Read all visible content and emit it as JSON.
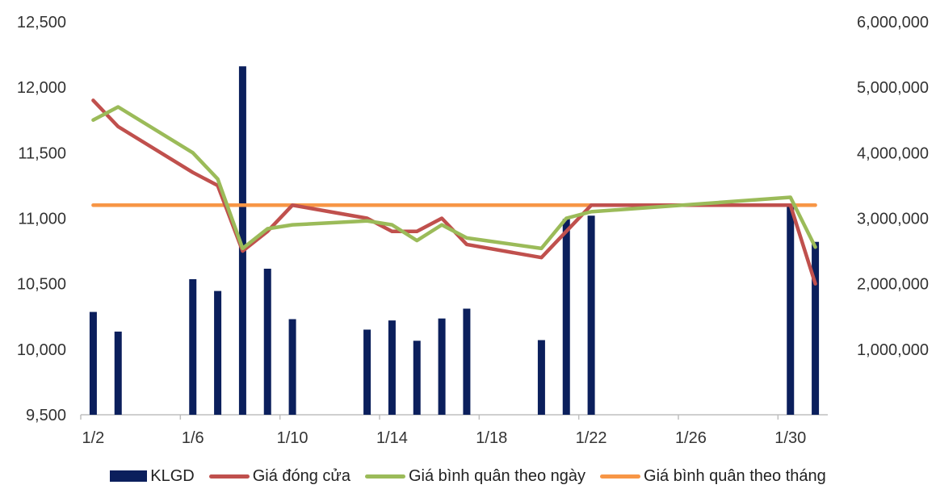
{
  "chart_data": {
    "type": "bar",
    "categories": [
      "1/2",
      "1/3",
      "1/4",
      "1/5",
      "1/6",
      "1/7",
      "1/8",
      "1/9",
      "1/10",
      "1/11",
      "1/12",
      "1/13",
      "1/14",
      "1/15",
      "1/16",
      "1/17",
      "1/18",
      "1/19",
      "1/20",
      "1/21",
      "1/22",
      "1/23",
      "1/24",
      "1/25",
      "1/26",
      "1/27",
      "1/28",
      "1/29",
      "1/30",
      "1/31"
    ],
    "x_tick_labels": [
      "1/2",
      "1/6",
      "1/10",
      "1/14",
      "1/18",
      "1/22",
      "1/26",
      "1/30"
    ],
    "left_axis": {
      "range": [
        9500,
        12500
      ],
      "ticks": [
        "9,500",
        "10,000",
        "10,500",
        "11,000",
        "11,500",
        "12,000",
        "12,500"
      ]
    },
    "right_axis": {
      "range": [
        0,
        6000000
      ],
      "ticks": [
        "",
        "1,000,000",
        "2,000,000",
        "3,000,000",
        "4,000,000",
        "5,000,000",
        "6,000,000"
      ]
    },
    "series": [
      {
        "name": "KLGD",
        "kind": "bar",
        "axis": "right",
        "color": "#0b1f5c",
        "points": [
          [
            "1/2",
            1570000
          ],
          [
            "1/3",
            1270000
          ],
          [
            "1/6",
            2070000
          ],
          [
            "1/7",
            1890000
          ],
          [
            "1/8",
            5320000
          ],
          [
            "1/9",
            2230000
          ],
          [
            "1/10",
            1460000
          ],
          [
            "1/13",
            1300000
          ],
          [
            "1/14",
            1440000
          ],
          [
            "1/15",
            1130000
          ],
          [
            "1/16",
            1470000
          ],
          [
            "1/17",
            1620000
          ],
          [
            "1/20",
            1140000
          ],
          [
            "1/21",
            2990000
          ],
          [
            "1/22",
            3040000
          ],
          [
            "1/30",
            3190000
          ],
          [
            "1/31",
            2640000
          ]
        ]
      },
      {
        "name": "Giá đóng cửa",
        "kind": "line",
        "axis": "left",
        "color": "#c0504d",
        "points": [
          [
            "1/2",
            11900
          ],
          [
            "1/3",
            11700
          ],
          [
            "1/6",
            11350
          ],
          [
            "1/7",
            11250
          ],
          [
            "1/8",
            10750
          ],
          [
            "1/9",
            10900
          ],
          [
            "1/10",
            11100
          ],
          [
            "1/13",
            11000
          ],
          [
            "1/14",
            10900
          ],
          [
            "1/15",
            10900
          ],
          [
            "1/16",
            11000
          ],
          [
            "1/17",
            10800
          ],
          [
            "1/20",
            10700
          ],
          [
            "1/21",
            10900
          ],
          [
            "1/22",
            11100
          ],
          [
            "1/30",
            11100
          ],
          [
            "1/31",
            10500
          ]
        ]
      },
      {
        "name": "Giá bình quân theo ngày",
        "kind": "line",
        "axis": "left",
        "color": "#9bbb59",
        "points": [
          [
            "1/2",
            11750
          ],
          [
            "1/3",
            11850
          ],
          [
            "1/6",
            11500
          ],
          [
            "1/7",
            11300
          ],
          [
            "1/8",
            10770
          ],
          [
            "1/9",
            10920
          ],
          [
            "1/10",
            10950
          ],
          [
            "1/13",
            10980
          ],
          [
            "1/14",
            10950
          ],
          [
            "1/15",
            10830
          ],
          [
            "1/16",
            10950
          ],
          [
            "1/17",
            10850
          ],
          [
            "1/20",
            10770
          ],
          [
            "1/21",
            11000
          ],
          [
            "1/22",
            11050
          ],
          [
            "1/30",
            11160
          ],
          [
            "1/31",
            10780
          ]
        ]
      },
      {
        "name": "Giá bình quân theo tháng",
        "kind": "line",
        "axis": "left",
        "color": "#f79646",
        "points": [
          [
            "1/2",
            11100
          ],
          [
            "1/31",
            11100
          ]
        ]
      }
    ],
    "legend_position": "bottom",
    "grid": false
  }
}
